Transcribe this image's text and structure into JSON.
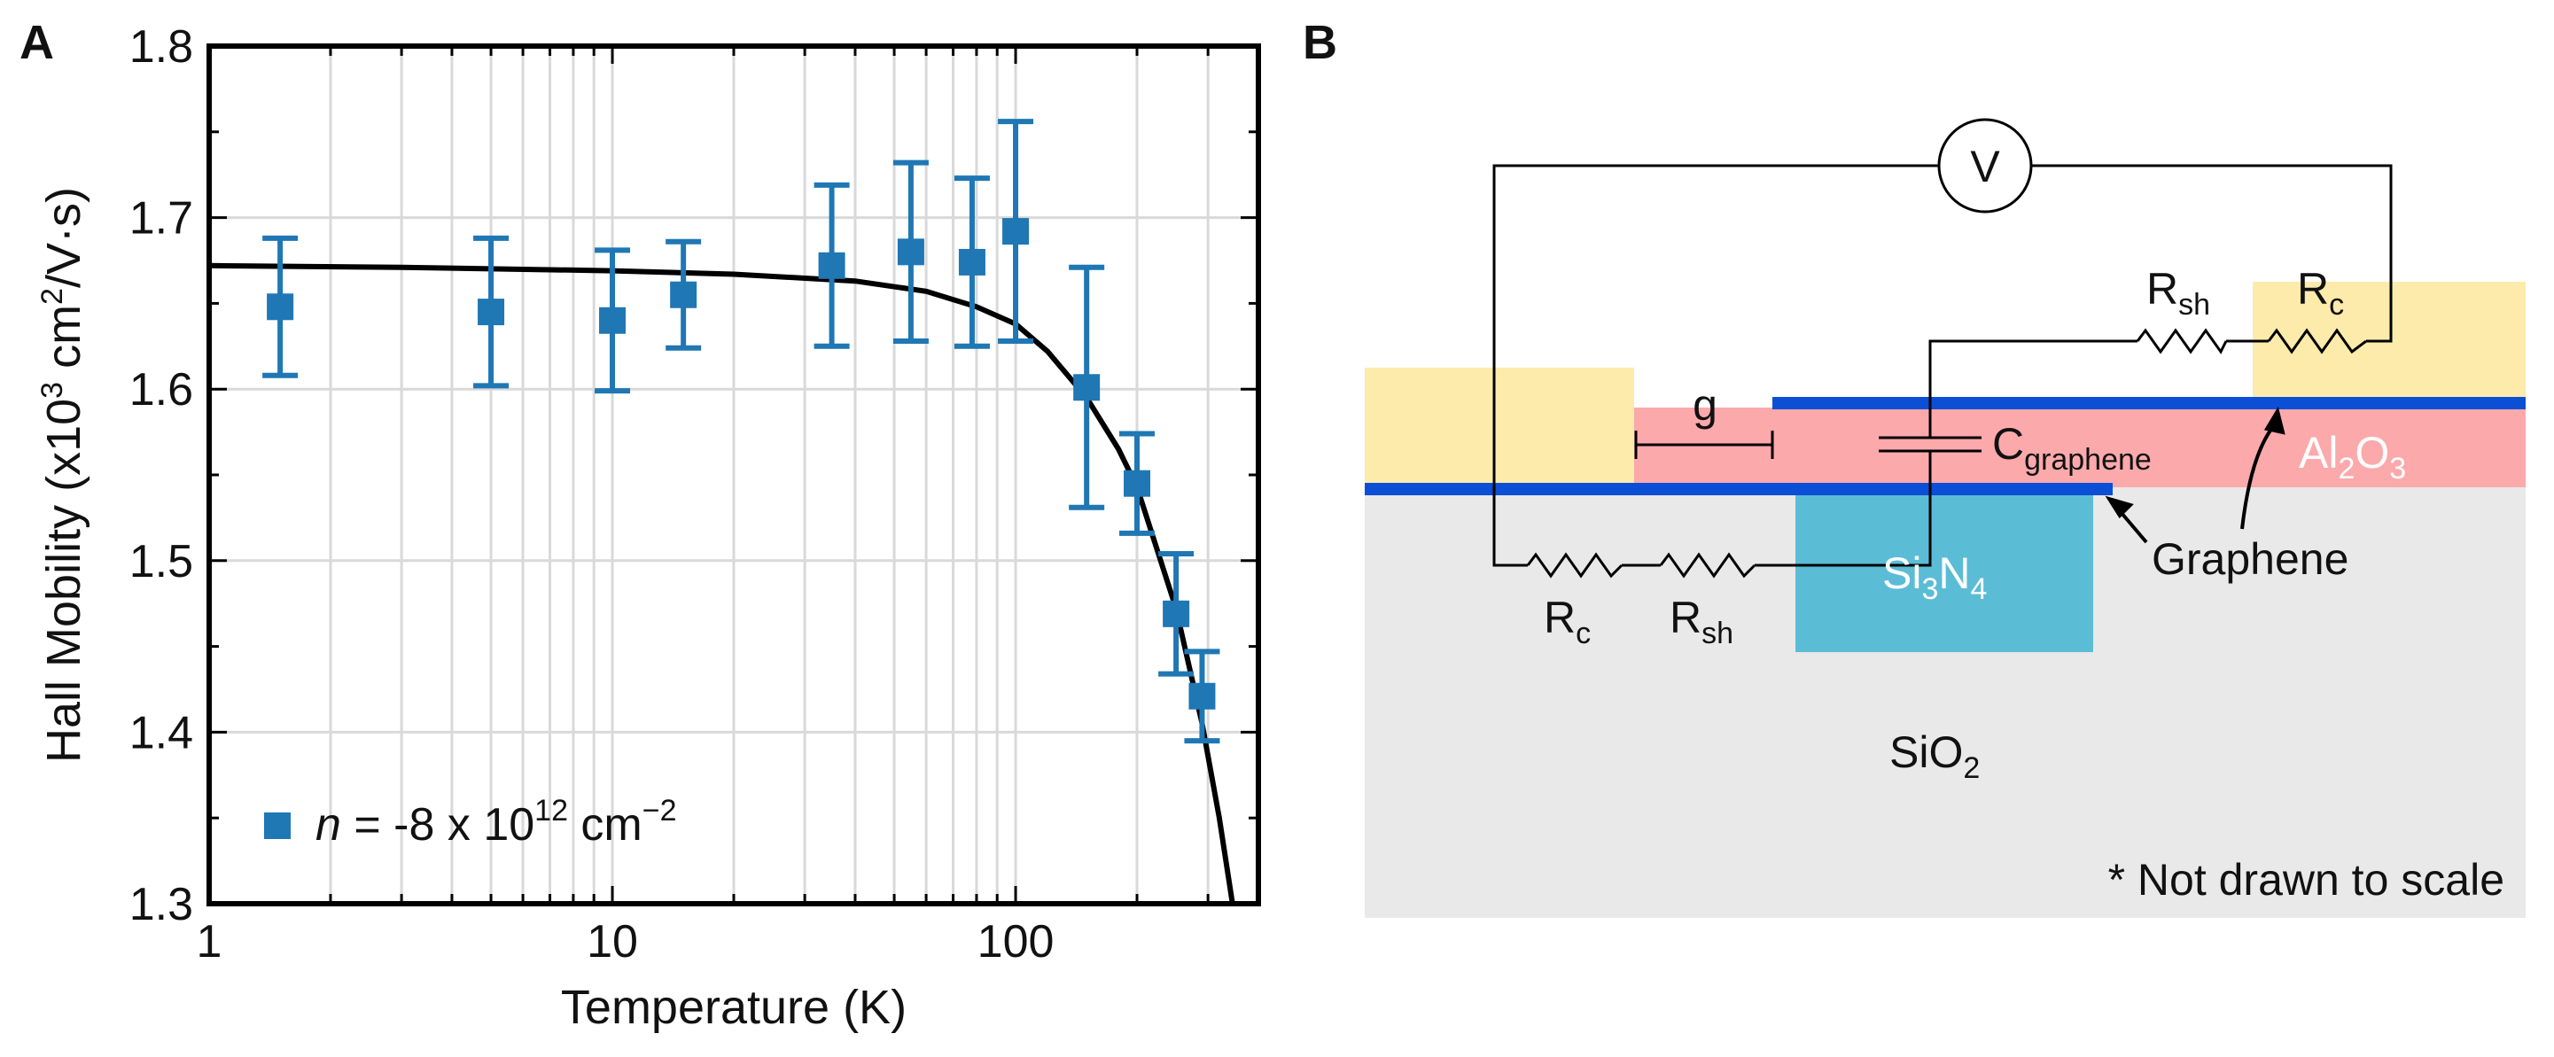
{
  "panels": {
    "a": "A",
    "b": "B"
  },
  "chart_data": {
    "type": "scatter",
    "xscale": "log",
    "xlim": [
      1,
      400
    ],
    "ylim": [
      1.3,
      1.8
    ],
    "xlabel": "Temperature (K)",
    "ylabel": {
      "pre": "Hall Mobility (x10",
      "sup1": "3",
      "mid": " cm",
      "sup2": "2",
      "post": "/V·s)"
    },
    "x_ticks": [
      {
        "value": 1,
        "label": "1"
      },
      {
        "value": 10,
        "label": "10"
      },
      {
        "value": 100,
        "label": "100"
      }
    ],
    "y_ticks": [
      {
        "value": 1.3,
        "label": "1.3"
      },
      {
        "value": 1.4,
        "label": "1.4"
      },
      {
        "value": 1.5,
        "label": "1.5"
      },
      {
        "value": 1.6,
        "label": "1.6"
      },
      {
        "value": 1.7,
        "label": "1.7"
      },
      {
        "value": 1.8,
        "label": "1.8"
      }
    ],
    "grid": true,
    "legend": {
      "placement": "lower-left",
      "var": "n",
      "text": " = -8 x 10",
      "exp": "12",
      "unit": " cm",
      "unit_exp": "−2"
    },
    "series": [
      {
        "color": "#1f77b4",
        "marker": "square",
        "points": [
          {
            "x": 1.5,
            "y": 1.648,
            "err": 0.04
          },
          {
            "x": 5,
            "y": 1.645,
            "err": 0.043
          },
          {
            "x": 10,
            "y": 1.64,
            "err": 0.041
          },
          {
            "x": 15,
            "y": 1.655,
            "err": 0.031
          },
          {
            "x": 35,
            "y": 1.672,
            "err": 0.047
          },
          {
            "x": 55,
            "y": 1.68,
            "err": 0.052
          },
          {
            "x": 78,
            "y": 1.674,
            "err": 0.049
          },
          {
            "x": 100,
            "y": 1.692,
            "err": 0.064
          },
          {
            "x": 150,
            "y": 1.601,
            "err": 0.07
          },
          {
            "x": 200,
            "y": 1.545,
            "err": 0.029
          },
          {
            "x": 250,
            "y": 1.469,
            "err": 0.035
          },
          {
            "x": 290,
            "y": 1.421,
            "err": 0.026
          }
        ]
      },
      {
        "color": "#000000",
        "type": "line",
        "points": [
          {
            "x": 1,
            "y": 1.672
          },
          {
            "x": 3,
            "y": 1.671
          },
          {
            "x": 10,
            "y": 1.669
          },
          {
            "x": 20,
            "y": 1.667
          },
          {
            "x": 40,
            "y": 1.663
          },
          {
            "x": 60,
            "y": 1.657
          },
          {
            "x": 80,
            "y": 1.648
          },
          {
            "x": 100,
            "y": 1.638
          },
          {
            "x": 120,
            "y": 1.622
          },
          {
            "x": 150,
            "y": 1.595
          },
          {
            "x": 180,
            "y": 1.565
          },
          {
            "x": 200,
            "y": 1.543
          },
          {
            "x": 250,
            "y": 1.472
          },
          {
            "x": 290,
            "y": 1.405
          },
          {
            "x": 320,
            "y": 1.35
          },
          {
            "x": 345,
            "y": 1.3
          }
        ]
      }
    ]
  },
  "diagram": {
    "voltmeter": "V",
    "rsh_top": {
      "main": "R",
      "sub": "sh"
    },
    "rc_top": {
      "main": "R",
      "sub": "c"
    },
    "gap": "g",
    "cap": {
      "main": "C",
      "sub": "graphene"
    },
    "al2o3": {
      "a": "Al",
      "s1": "2",
      "b": "O",
      "s2": "3"
    },
    "graphene": "Graphene",
    "rc_bottom": {
      "main": "R",
      "sub": "c"
    },
    "rsh_bottom": {
      "main": "R",
      "sub": "sh"
    },
    "si3n4": {
      "a": "Si",
      "s1": "3",
      "b": "N",
      "s2": "4"
    },
    "sio2": {
      "a": "SiO",
      "s1": "2"
    },
    "note": "* Not drawn to scale",
    "colors": {
      "gold": "#fcebaa",
      "pink": "#fca9ac",
      "blue": "#0a4fd6",
      "teal": "#5bbcd6",
      "substrate": "#e9e9e9"
    }
  }
}
